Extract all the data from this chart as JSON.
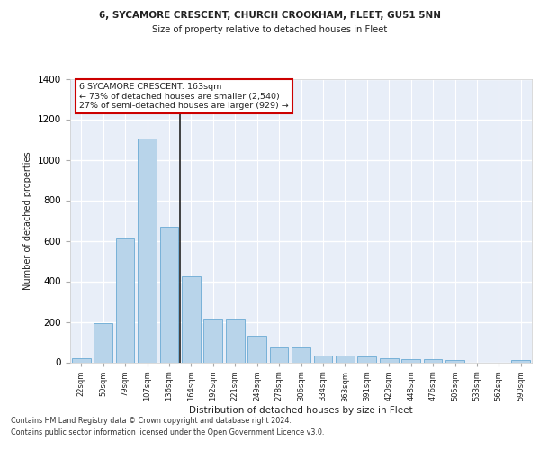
{
  "title_line1": "6, SYCAMORE CRESCENT, CHURCH CROOKHAM, FLEET, GU51 5NN",
  "title_line2": "Size of property relative to detached houses in Fleet",
  "xlabel": "Distribution of detached houses by size in Fleet",
  "ylabel": "Number of detached properties",
  "bar_color": "#b8d4ea",
  "bar_edge_color": "#6aaad4",
  "highlight_line_color": "#222222",
  "categories": [
    "22sqm",
    "50sqm",
    "79sqm",
    "107sqm",
    "136sqm",
    "164sqm",
    "192sqm",
    "221sqm",
    "249sqm",
    "278sqm",
    "306sqm",
    "334sqm",
    "363sqm",
    "391sqm",
    "420sqm",
    "448sqm",
    "476sqm",
    "505sqm",
    "533sqm",
    "562sqm",
    "590sqm"
  ],
  "values": [
    20,
    195,
    610,
    1105,
    670,
    425,
    215,
    215,
    130,
    75,
    75,
    35,
    35,
    30,
    20,
    15,
    15,
    10,
    0,
    0,
    10
  ],
  "ylim": [
    0,
    1400
  ],
  "yticks": [
    0,
    200,
    400,
    600,
    800,
    1000,
    1200,
    1400
  ],
  "annotation_text": "6 SYCAMORE CRESCENT: 163sqm\n← 73% of detached houses are smaller (2,540)\n27% of semi-detached houses are larger (929) →",
  "annotation_box_color": "#ffffff",
  "annotation_box_edge": "#cc0000",
  "background_color": "#e8eef8",
  "grid_color": "#ffffff",
  "footer_line1": "Contains HM Land Registry data © Crown copyright and database right 2024.",
  "footer_line2": "Contains public sector information licensed under the Open Government Licence v3.0."
}
